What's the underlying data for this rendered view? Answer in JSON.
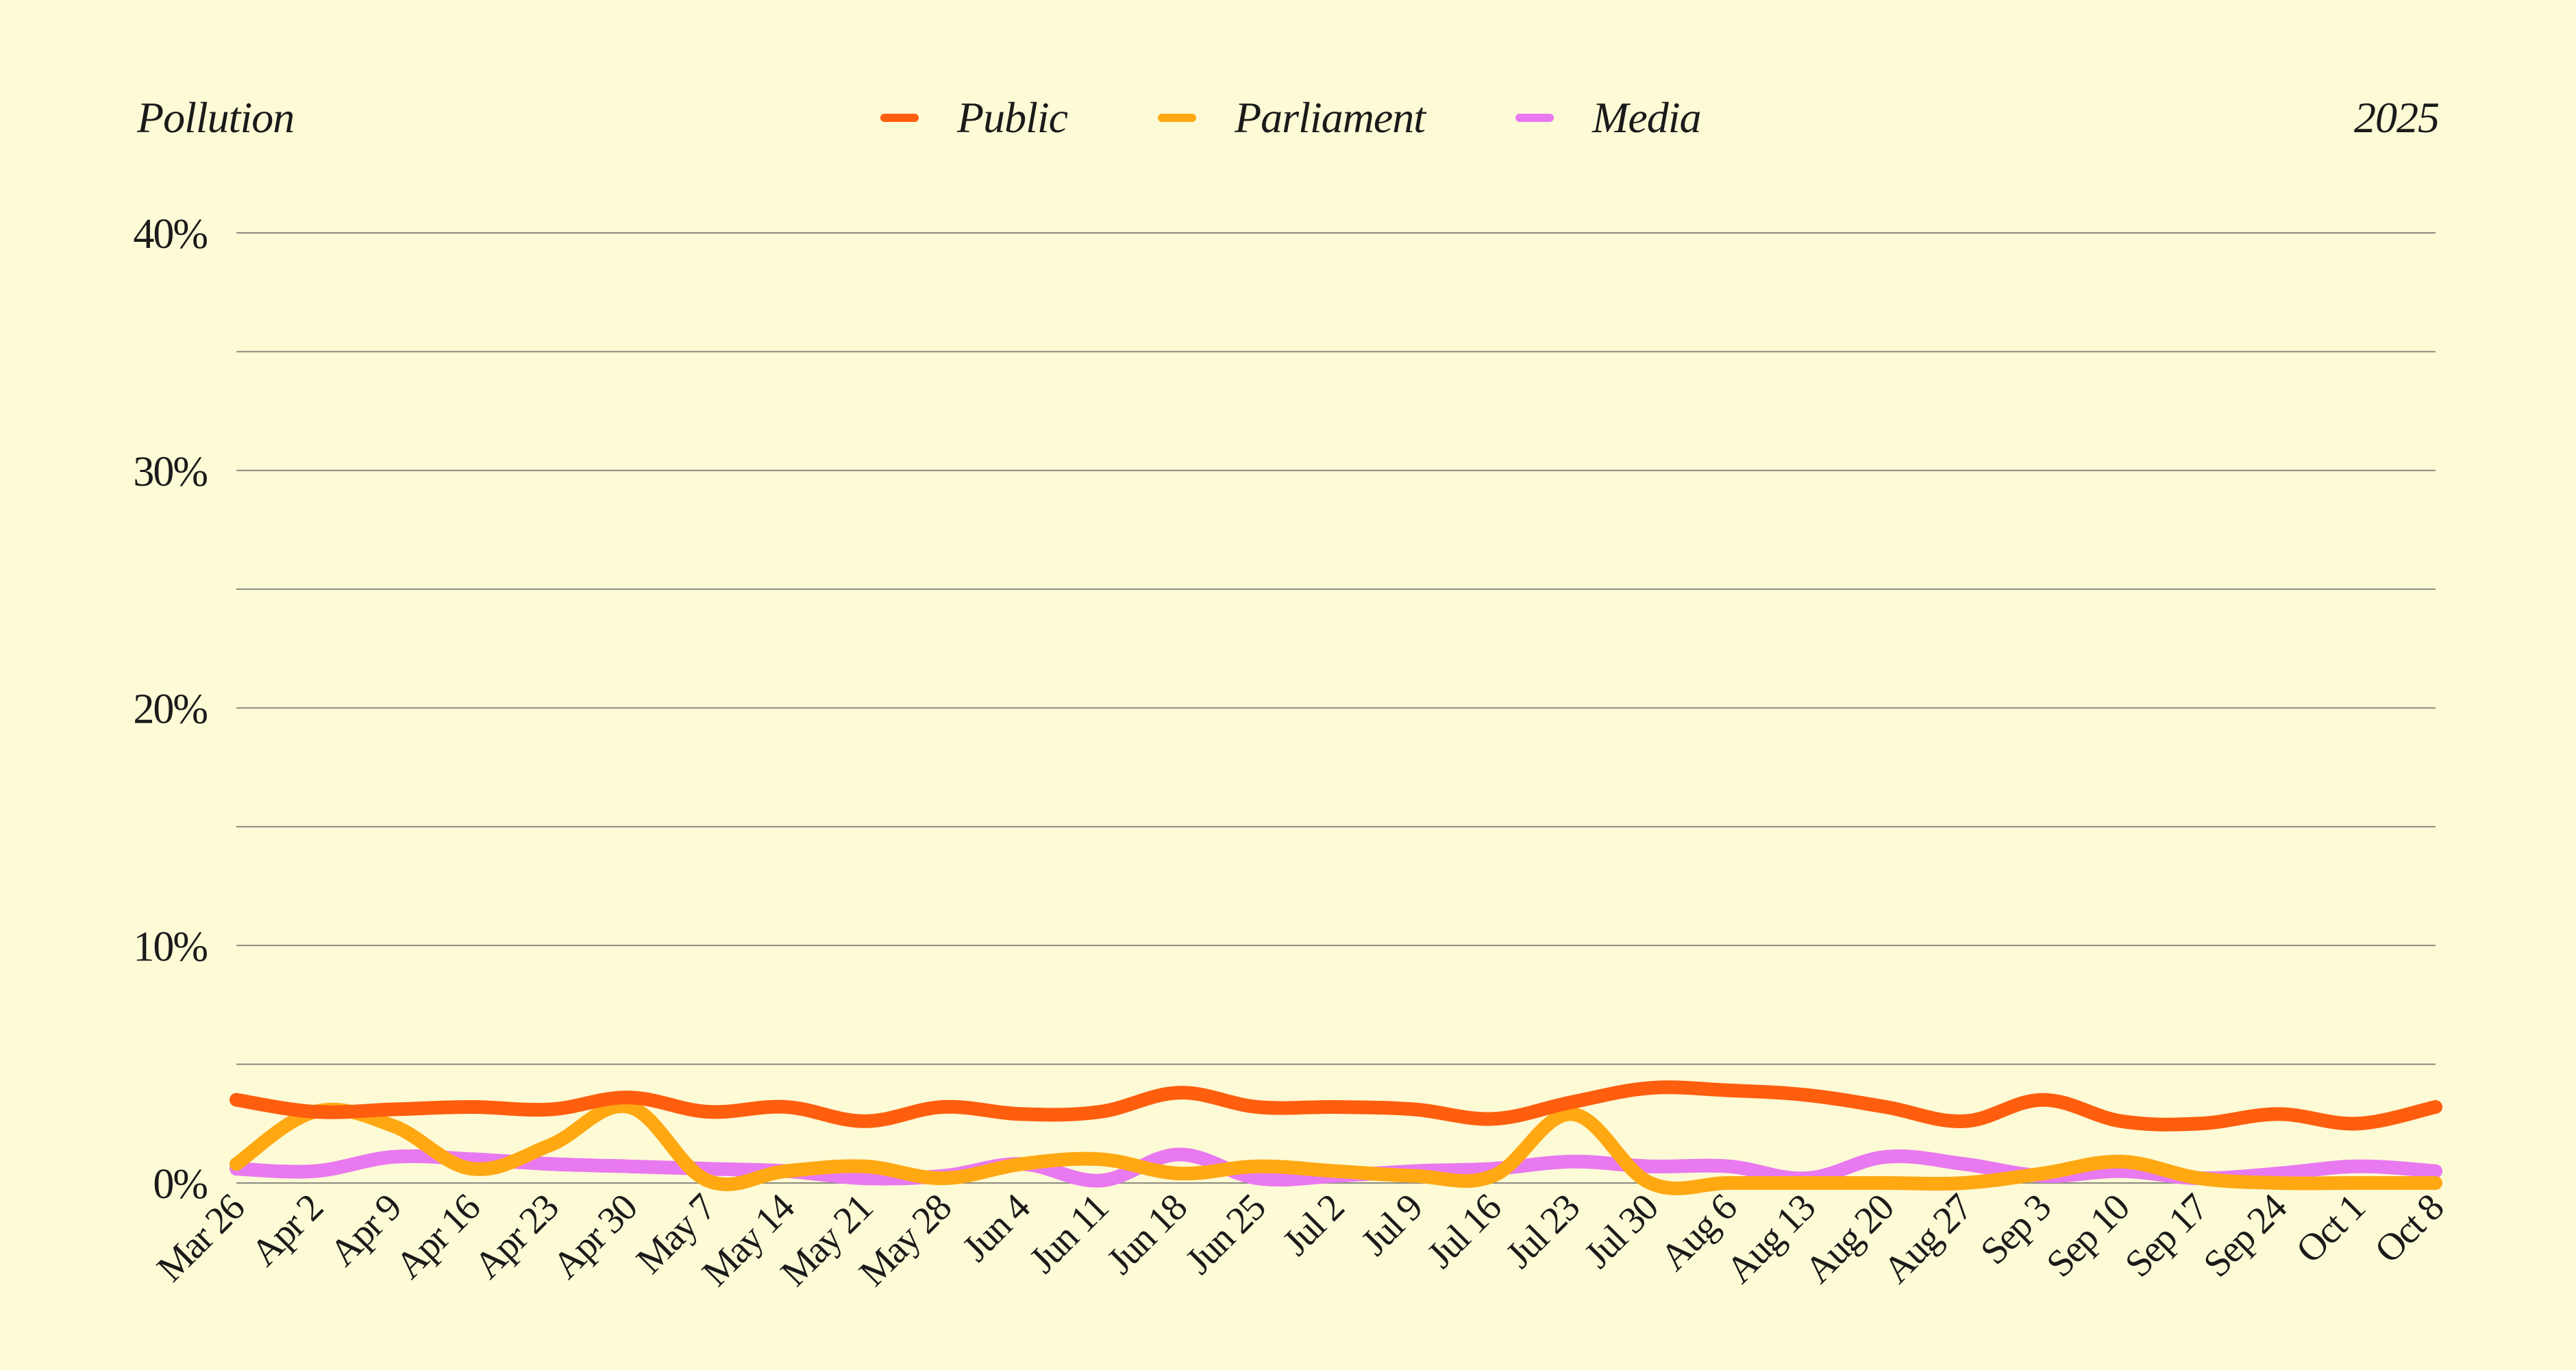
{
  "header": {
    "topic": "Pollution",
    "year": "2025"
  },
  "legend": [
    {
      "name": "Public",
      "color": "#ff5e0e"
    },
    {
      "name": "Parliament",
      "color": "#ffa812"
    },
    {
      "name": "Media",
      "color": "#e879f0"
    }
  ],
  "chart_data": {
    "type": "line",
    "title": "",
    "xlabel": "",
    "ylabel": "",
    "ylim": [
      0,
      40
    ],
    "y_ticks": [
      0,
      10,
      20,
      30,
      40
    ],
    "y_tick_labels": [
      "0%",
      "10%",
      "20%",
      "30%",
      "40%"
    ],
    "grid": true,
    "legend_position": "top",
    "categories": [
      "Mar 26",
      "Apr 2",
      "Apr 9",
      "Apr 16",
      "Apr 23",
      "Apr 30",
      "May 7",
      "May 14",
      "May 21",
      "May 28",
      "Jun 4",
      "Jun 11",
      "Jun 18",
      "Jun 25",
      "Jul 2",
      "Jul 9",
      "Jul 16",
      "Jul 23",
      "Jul 30",
      "Aug 6",
      "Aug 13",
      "Aug 20",
      "Aug 27",
      "Sep 3",
      "Sep 10",
      "Sep 17",
      "Sep 24",
      "Oct 1",
      "Oct 8"
    ],
    "series": [
      {
        "name": "Public",
        "color": "#ff5e0e",
        "values": [
          3.5,
          3.0,
          3.1,
          3.2,
          3.1,
          3.6,
          3.0,
          3.2,
          2.6,
          3.2,
          2.9,
          3.0,
          3.8,
          3.2,
          3.2,
          3.1,
          2.7,
          3.4,
          4.0,
          3.9,
          3.7,
          3.2,
          2.6,
          3.5,
          2.6,
          2.5,
          2.9,
          2.5,
          3.2
        ]
      },
      {
        "name": "Parliament",
        "color": "#ffa812",
        "values": [
          0.8,
          3.0,
          2.4,
          0.6,
          1.6,
          3.2,
          0.1,
          0.5,
          0.7,
          0.2,
          0.8,
          1.0,
          0.4,
          0.7,
          0.5,
          0.3,
          0.3,
          2.9,
          0.0,
          0.0,
          0.0,
          0.0,
          0.0,
          0.4,
          0.9,
          0.2,
          0.0,
          0.0,
          0.0
        ]
      },
      {
        "name": "Media",
        "color": "#e879f0",
        "values": [
          0.6,
          0.5,
          1.1,
          1.0,
          0.8,
          0.7,
          0.6,
          0.5,
          0.2,
          0.3,
          0.8,
          0.1,
          1.2,
          0.2,
          0.3,
          0.5,
          0.6,
          0.9,
          0.7,
          0.7,
          0.2,
          1.1,
          0.8,
          0.3,
          0.5,
          0.2,
          0.4,
          0.7,
          0.5
        ]
      }
    ]
  }
}
